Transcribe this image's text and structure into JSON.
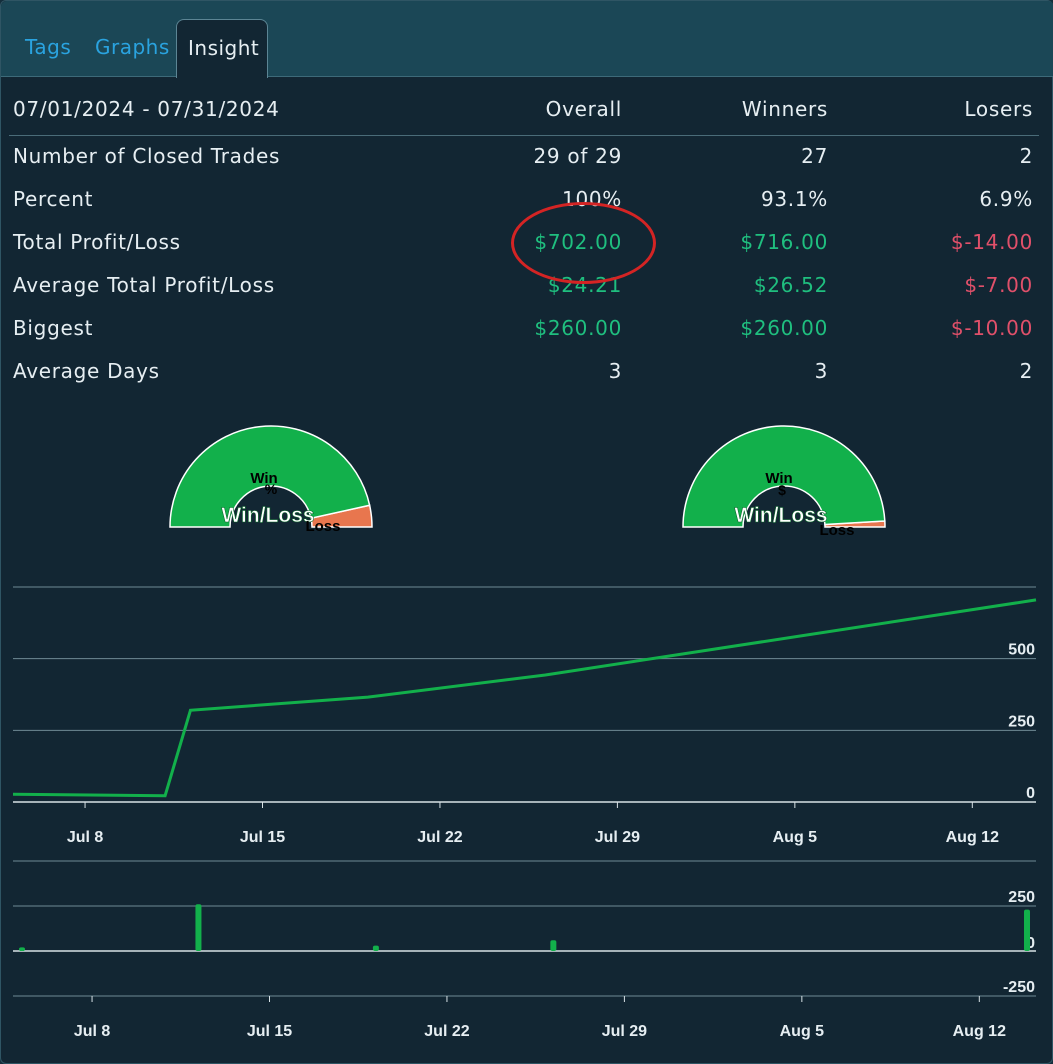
{
  "tabs": [
    {
      "label": "Tags",
      "active": false
    },
    {
      "label": "Graphs",
      "active": false
    },
    {
      "label": "Insight",
      "active": true
    }
  ],
  "stats": {
    "date_range": "07/01/2024 - 07/31/2024",
    "columns": [
      "Overall",
      "Winners",
      "Losers"
    ],
    "rows": [
      {
        "label": "Number of Closed Trades",
        "overall": "29 of 29",
        "winners": "27",
        "losers": "2",
        "tone": [
          "neutral",
          "neutral",
          "neutral"
        ]
      },
      {
        "label": "Percent",
        "overall": "100%",
        "winners": "93.1%",
        "losers": "6.9%",
        "tone": [
          "neutral",
          "neutral",
          "neutral"
        ]
      },
      {
        "label": "Total Profit/Loss",
        "overall": "$702.00",
        "winners": "$716.00",
        "losers": "$-14.00",
        "tone": [
          "pos",
          "pos",
          "neg"
        ]
      },
      {
        "label": "Average Total Profit/Loss",
        "overall": "$24.21",
        "winners": "$26.52",
        "losers": "$-7.00",
        "tone": [
          "pos",
          "pos",
          "neg"
        ]
      },
      {
        "label": "Biggest",
        "overall": "$260.00",
        "winners": "$260.00",
        "losers": "$-10.00",
        "tone": [
          "pos",
          "pos",
          "neg"
        ]
      },
      {
        "label": "Average Days",
        "overall": "3",
        "winners": "3",
        "losers": "2",
        "tone": [
          "neutral",
          "neutral",
          "neutral"
        ]
      }
    ]
  },
  "gauges": [
    {
      "title": "Win/Loss",
      "center_symbol": "%",
      "win_label": "Win",
      "loss_label": "Loss",
      "win_fraction": 0.931,
      "win_color": "#12b04b",
      "loss_color": "#e8764e"
    },
    {
      "title": "Win/Loss",
      "center_symbol": "$",
      "win_label": "Win",
      "loss_label": "Loss",
      "win_fraction": 0.981,
      "win_color": "#12b04b",
      "loss_color": "#e8764e"
    }
  ],
  "chart_data": [
    {
      "type": "line",
      "title": "",
      "color": "#12b04b",
      "x": [
        "2024-07-05",
        "2024-07-11",
        "2024-07-12",
        "2024-07-19",
        "2024-07-26",
        "2024-08-16"
      ],
      "y": [
        27,
        22,
        320,
        366,
        443,
        705
      ],
      "ylim": [
        0,
        750
      ],
      "yticks": [
        "0",
        "250",
        "500"
      ],
      "xticks": [
        "Jul 8",
        "Jul 15",
        "Jul 22",
        "Jul 29",
        "Aug 5",
        "Aug 12"
      ],
      "grid": true
    },
    {
      "type": "bar",
      "title": "",
      "color": "#12b04b",
      "x": [
        "2024-07-05",
        "2024-07-12",
        "2024-07-19",
        "2024-07-26",
        "2024-08-16"
      ],
      "values": [
        20,
        260,
        30,
        60,
        230
      ],
      "ylim": [
        -250,
        250
      ],
      "yticks": [
        "250",
        "0",
        "-250"
      ],
      "xticks": [
        "Jul 8",
        "Jul 15",
        "Jul 22",
        "Jul 29",
        "Aug 5",
        "Aug 12"
      ],
      "grid": true
    }
  ]
}
